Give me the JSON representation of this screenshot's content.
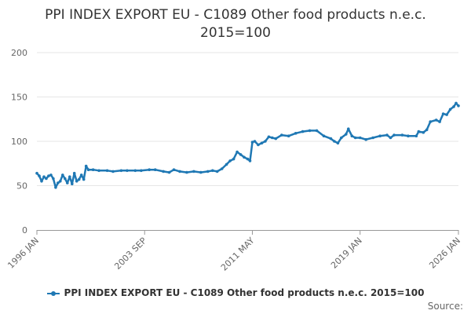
{
  "chart_data": {
    "type": "line",
    "title_line1": "PPI INDEX EXPORT EU - C1089 Other food products n.e.c.",
    "title_line2": "2015=100",
    "xlabel": "",
    "ylabel": "",
    "ylim": [
      0,
      200
    ],
    "yticks": [
      0,
      50,
      100,
      150,
      200
    ],
    "xticks": [
      "1996 JAN",
      "2003 SEP",
      "2011 MAY",
      "2019 JAN",
      "2026 JAN"
    ],
    "x_range": [
      "1996-01",
      "2026-01"
    ],
    "grid": true,
    "legend_position": "bottom",
    "source_label": "Source:",
    "color": "#1f78b4",
    "series": [
      {
        "name": "PPI INDEX EXPORT EU - C1089 Other food products n.e.c. 2015=100",
        "points": [
          [
            "1996-01",
            64
          ],
          [
            "1996-03",
            61
          ],
          [
            "1996-05",
            55
          ],
          [
            "1996-07",
            60
          ],
          [
            "1996-09",
            58
          ],
          [
            "1996-11",
            61
          ],
          [
            "1997-01",
            62
          ],
          [
            "1997-03",
            58
          ],
          [
            "1997-05",
            48
          ],
          [
            "1997-07",
            53
          ],
          [
            "1997-09",
            55
          ],
          [
            "1997-11",
            62
          ],
          [
            "1998-01",
            58
          ],
          [
            "1998-03",
            53
          ],
          [
            "1998-05",
            60
          ],
          [
            "1998-07",
            52
          ],
          [
            "1998-09",
            64
          ],
          [
            "1998-11",
            55
          ],
          [
            "1999-01",
            57
          ],
          [
            "1999-03",
            62
          ],
          [
            "1999-05",
            57
          ],
          [
            "1999-07",
            72
          ],
          [
            "1999-09",
            68
          ],
          [
            "2000-01",
            68
          ],
          [
            "2000-06",
            67
          ],
          [
            "2001-01",
            67
          ],
          [
            "2001-06",
            66
          ],
          [
            "2002-01",
            67
          ],
          [
            "2002-06",
            67
          ],
          [
            "2003-01",
            67
          ],
          [
            "2003-06",
            67
          ],
          [
            "2004-01",
            68
          ],
          [
            "2004-06",
            68
          ],
          [
            "2005-01",
            66
          ],
          [
            "2005-06",
            65
          ],
          [
            "2005-10",
            68
          ],
          [
            "2006-03",
            66
          ],
          [
            "2006-09",
            65
          ],
          [
            "2007-03",
            66
          ],
          [
            "2007-09",
            65
          ],
          [
            "2008-03",
            66
          ],
          [
            "2008-07",
            67
          ],
          [
            "2008-11",
            66
          ],
          [
            "2009-03",
            69
          ],
          [
            "2009-07",
            74
          ],
          [
            "2009-10",
            78
          ],
          [
            "2010-01",
            80
          ],
          [
            "2010-04",
            88
          ],
          [
            "2010-07",
            85
          ],
          [
            "2010-10",
            82
          ],
          [
            "2011-01",
            80
          ],
          [
            "2011-03",
            78
          ],
          [
            "2011-05",
            99
          ],
          [
            "2011-07",
            100
          ],
          [
            "2011-10",
            96
          ],
          [
            "2012-01",
            98
          ],
          [
            "2012-04",
            100
          ],
          [
            "2012-07",
            105
          ],
          [
            "2012-10",
            104
          ],
          [
            "2013-01",
            103
          ],
          [
            "2013-06",
            107
          ],
          [
            "2013-12",
            106
          ],
          [
            "2014-06",
            109
          ],
          [
            "2014-12",
            111
          ],
          [
            "2015-06",
            112
          ],
          [
            "2015-12",
            112
          ],
          [
            "2016-06",
            106
          ],
          [
            "2016-12",
            103
          ],
          [
            "2017-03",
            100
          ],
          [
            "2017-06",
            98
          ],
          [
            "2017-09",
            104
          ],
          [
            "2018-01",
            108
          ],
          [
            "2018-03",
            114
          ],
          [
            "2018-06",
            106
          ],
          [
            "2018-09",
            104
          ],
          [
            "2019-01",
            104
          ],
          [
            "2019-06",
            102
          ],
          [
            "2019-12",
            104
          ],
          [
            "2020-06",
            106
          ],
          [
            "2020-12",
            107
          ],
          [
            "2021-03",
            104
          ],
          [
            "2021-06",
            107
          ],
          [
            "2022-01",
            107
          ],
          [
            "2022-06",
            106
          ],
          [
            "2023-01",
            106
          ],
          [
            "2023-03",
            111
          ],
          [
            "2023-07",
            110
          ],
          [
            "2023-10",
            113
          ],
          [
            "2024-01",
            122
          ],
          [
            "2024-06",
            124
          ],
          [
            "2024-09",
            122
          ],
          [
            "2024-12",
            131
          ],
          [
            "2025-03",
            130
          ],
          [
            "2025-06",
            136
          ],
          [
            "2025-09",
            139
          ],
          [
            "2025-11",
            143
          ],
          [
            "2026-01",
            140
          ]
        ]
      }
    ]
  }
}
